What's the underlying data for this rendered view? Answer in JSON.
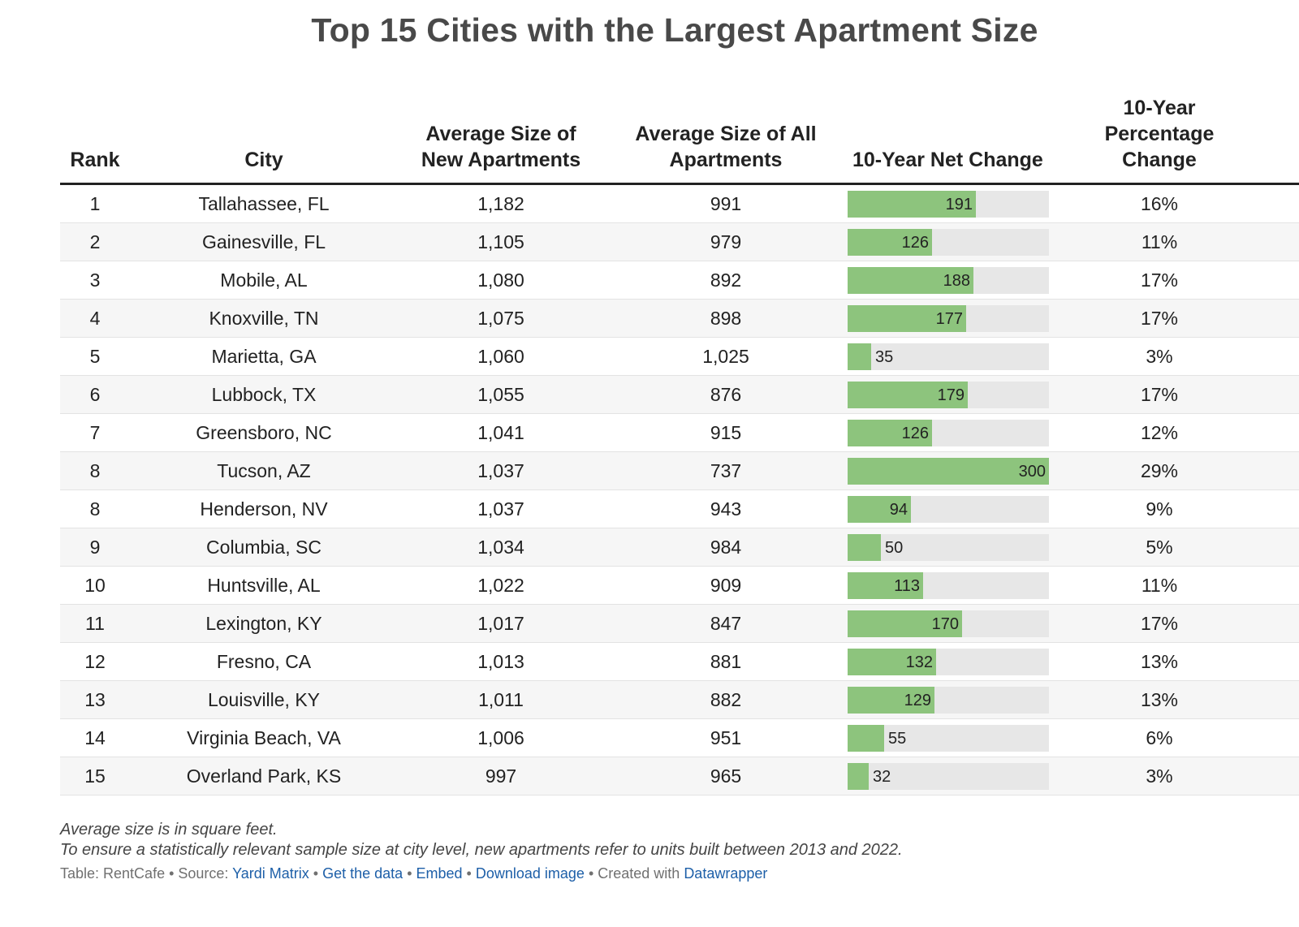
{
  "title": "Top 15 Cities with the Largest Apartment Size",
  "table": {
    "headers": {
      "rank": "Rank",
      "city": "City",
      "new_line1": "Average Size of",
      "new_line2": "New Apartments",
      "all_line1": "Average Size of All",
      "all_line2": "Apartments",
      "net": "10-Year Net Change",
      "pct_line1": "10-Year",
      "pct_line2": "Percentage",
      "pct_line3": "Change"
    }
  },
  "chart_data": {
    "type": "table",
    "bar_column": "10-Year Net Change",
    "bar_max": 300,
    "bar_color": "#8dc47d",
    "bar_track_color": "#e7e7e7",
    "rows": [
      {
        "rank": "1",
        "city": "Tallahassee, FL",
        "new_size": "1,182",
        "all_size": "991",
        "net_change": 191,
        "pct_change": "16%"
      },
      {
        "rank": "2",
        "city": "Gainesville, FL",
        "new_size": "1,105",
        "all_size": "979",
        "net_change": 126,
        "pct_change": "11%"
      },
      {
        "rank": "3",
        "city": "Mobile, AL",
        "new_size": "1,080",
        "all_size": "892",
        "net_change": 188,
        "pct_change": "17%"
      },
      {
        "rank": "4",
        "city": "Knoxville, TN",
        "new_size": "1,075",
        "all_size": "898",
        "net_change": 177,
        "pct_change": "17%"
      },
      {
        "rank": "5",
        "city": "Marietta, GA",
        "new_size": "1,060",
        "all_size": "1,025",
        "net_change": 35,
        "pct_change": "3%"
      },
      {
        "rank": "6",
        "city": "Lubbock, TX",
        "new_size": "1,055",
        "all_size": "876",
        "net_change": 179,
        "pct_change": "17%"
      },
      {
        "rank": "7",
        "city": "Greensboro, NC",
        "new_size": "1,041",
        "all_size": "915",
        "net_change": 126,
        "pct_change": "12%"
      },
      {
        "rank": "8",
        "city": "Tucson, AZ",
        "new_size": "1,037",
        "all_size": "737",
        "net_change": 300,
        "pct_change": "29%"
      },
      {
        "rank": "8",
        "city": "Henderson, NV",
        "new_size": "1,037",
        "all_size": "943",
        "net_change": 94,
        "pct_change": "9%"
      },
      {
        "rank": "9",
        "city": "Columbia, SC",
        "new_size": "1,034",
        "all_size": "984",
        "net_change": 50,
        "pct_change": "5%"
      },
      {
        "rank": "10",
        "city": "Huntsville, AL",
        "new_size": "1,022",
        "all_size": "909",
        "net_change": 113,
        "pct_change": "11%"
      },
      {
        "rank": "11",
        "city": "Lexington, KY",
        "new_size": "1,017",
        "all_size": "847",
        "net_change": 170,
        "pct_change": "17%"
      },
      {
        "rank": "12",
        "city": "Fresno, CA",
        "new_size": "1,013",
        "all_size": "881",
        "net_change": 132,
        "pct_change": "13%"
      },
      {
        "rank": "13",
        "city": "Louisville, KY",
        "new_size": "1,011",
        "all_size": "882",
        "net_change": 129,
        "pct_change": "13%"
      },
      {
        "rank": "14",
        "city": "Virginia Beach, VA",
        "new_size": "1,006",
        "all_size": "951",
        "net_change": 55,
        "pct_change": "6%"
      },
      {
        "rank": "15",
        "city": "Overland Park, KS",
        "new_size": "997",
        "all_size": "965",
        "net_change": 32,
        "pct_change": "3%"
      }
    ]
  },
  "notes": {
    "line1": "Average size is in square feet.",
    "line2": "To ensure a statistically relevant sample size at city level, new apartments refer to units built between 2013 and 2022."
  },
  "footer": {
    "table_credit": "Table: RentCafe",
    "sep": " • ",
    "source_prefix": "Source: ",
    "source_link": "Yardi Matrix",
    "get_data": "Get the data",
    "embed": "Embed",
    "download": "Download image",
    "created_prefix": "Created with ",
    "created_link": "Datawrapper"
  }
}
